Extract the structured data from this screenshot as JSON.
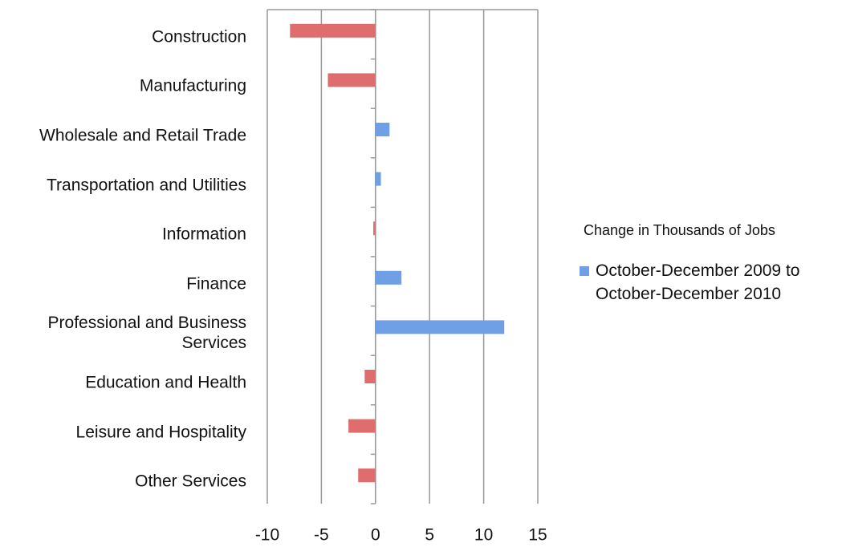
{
  "chart_data": {
    "type": "bar",
    "orientation": "horizontal",
    "legend_title": "Change in Thousands of Jobs",
    "categories": [
      "Construction",
      "Manufacturing",
      "Wholesale and Retail Trade",
      "Transportation and Utilities",
      "Information",
      "Finance",
      "Professional and Business Services",
      "Education and Health",
      "Leisure and Hospitality",
      "Other Services"
    ],
    "series": [
      {
        "name": "October-December 2009 to October-December 2010",
        "color": "#6fa0e6",
        "negative_color": "#e06d6d",
        "values": [
          -7.9,
          -4.4,
          1.3,
          0.5,
          -0.2,
          2.4,
          11.9,
          -1.0,
          -2.5,
          -1.6
        ]
      }
    ],
    "xlim": [
      -10,
      15
    ],
    "xticks": [
      -10,
      -5,
      0,
      5,
      10,
      15
    ],
    "grid": true,
    "legend": "right"
  }
}
